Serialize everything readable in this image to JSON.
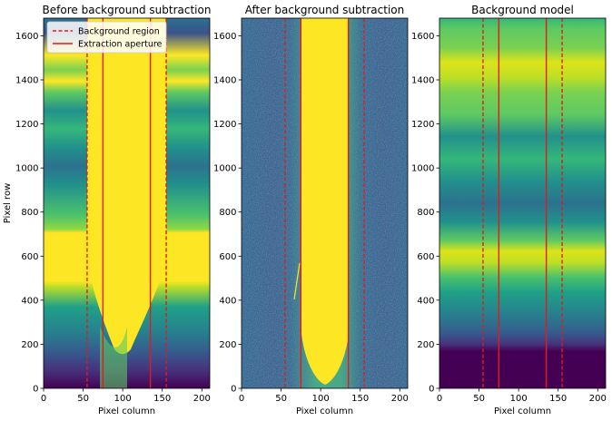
{
  "chart_data": [
    {
      "type": "heatmap",
      "title": "Before background subtraction",
      "xlabel": "Pixel column",
      "ylabel": "Pixel row",
      "xlim": [
        0,
        210
      ],
      "ylim": [
        0,
        1680
      ],
      "xticks": [
        0,
        50,
        100,
        150,
        200
      ],
      "yticks": [
        0,
        200,
        400,
        600,
        800,
        1000,
        1200,
        1400,
        1600
      ],
      "background_region": [
        [
          55,
          75
        ],
        [
          135,
          155
        ]
      ],
      "extraction_aperture": [
        75,
        135
      ],
      "colors": {
        "region": "#ff0000",
        "aperture": "#e31a1c"
      }
    },
    {
      "type": "heatmap",
      "title": "After background subtraction",
      "xlabel": "Pixel column",
      "ylabel": "",
      "xlim": [
        0,
        210
      ],
      "ylim": [
        0,
        1680
      ],
      "xticks": [
        0,
        50,
        100,
        150,
        200
      ],
      "yticks": [
        0,
        200,
        400,
        600,
        800,
        1000,
        1200,
        1400,
        1600
      ],
      "background_region": [
        [
          55,
          75
        ],
        [
          135,
          155
        ]
      ],
      "extraction_aperture": [
        75,
        135
      ]
    },
    {
      "type": "heatmap",
      "title": "Background model",
      "xlabel": "Pixel column",
      "ylabel": "",
      "xlim": [
        0,
        210
      ],
      "ylim": [
        0,
        1680
      ],
      "xticks": [
        0,
        50,
        100,
        150,
        200
      ],
      "yticks": [
        0,
        200,
        400,
        600,
        800,
        1000,
        1200,
        1400,
        1600
      ],
      "background_region": [
        [
          55,
          75
        ],
        [
          135,
          155
        ]
      ],
      "extraction_aperture": [
        75,
        135
      ]
    }
  ],
  "legend": {
    "entries": [
      "Background region",
      "Extraction aperture"
    ],
    "placement": "top-left of first panel"
  }
}
